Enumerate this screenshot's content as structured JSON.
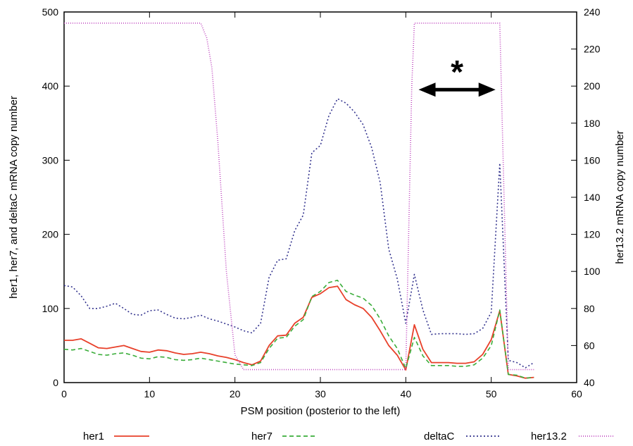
{
  "chart_data": {
    "type": "line",
    "xlabel": "PSM position (posterior to the left)",
    "ylabel": "her1, her7, and deltaC mRNA copy number",
    "y2label": "her13.2 mRNA copy number",
    "xlim": [
      0,
      60
    ],
    "ylim": [
      0,
      500
    ],
    "y2lim": [
      40,
      240
    ],
    "xticks": [
      0,
      10,
      20,
      30,
      40,
      50,
      60
    ],
    "yticks": [
      0,
      100,
      200,
      300,
      400,
      500
    ],
    "y2ticks": [
      40,
      60,
      80,
      100,
      120,
      140,
      160,
      180,
      200,
      220,
      240
    ],
    "grid": false,
    "legend_position": "bottom",
    "annotation": {
      "text": "*",
      "arrow_from": 41.5,
      "arrow_to": 50.5,
      "arrow_y": 400
    },
    "series": [
      {
        "name": "her1",
        "axis": "left",
        "color": "#e8402a",
        "dash": "",
        "x": [
          0,
          1,
          2,
          3,
          4,
          5,
          6,
          7,
          8,
          9,
          10,
          11,
          12,
          13,
          14,
          15,
          16,
          17,
          18,
          19,
          20,
          21,
          22,
          23,
          24,
          25,
          26,
          27,
          28,
          29,
          30,
          31,
          32,
          33,
          34,
          35,
          36,
          37,
          38,
          39,
          40,
          41,
          42,
          43,
          44,
          45,
          46,
          47,
          48,
          49,
          50,
          51,
          52,
          53,
          54,
          55
        ],
        "y": [
          57,
          57,
          59,
          53,
          47,
          46,
          48,
          50,
          46,
          42,
          41,
          44,
          43,
          40,
          38,
          39,
          41,
          39,
          36,
          34,
          31,
          27,
          24,
          29,
          50,
          63,
          64,
          80,
          88,
          115,
          120,
          128,
          130,
          112,
          105,
          100,
          88,
          70,
          50,
          37,
          17,
          78,
          45,
          27,
          27,
          27,
          26,
          26,
          28,
          38,
          58,
          97,
          11,
          9,
          6,
          7
        ]
      },
      {
        "name": "her7",
        "axis": "left",
        "color": "#3aad3a",
        "dash": "6 4",
        "x": [
          0,
          1,
          2,
          3,
          4,
          5,
          6,
          7,
          8,
          9,
          10,
          11,
          12,
          13,
          14,
          15,
          16,
          17,
          18,
          19,
          20,
          21,
          22,
          23,
          24,
          25,
          26,
          27,
          28,
          29,
          30,
          31,
          32,
          33,
          34,
          35,
          36,
          37,
          38,
          39,
          40,
          41,
          42,
          43,
          44,
          45,
          46,
          47,
          48,
          49,
          50,
          51,
          52,
          53,
          54,
          55
        ],
        "y": [
          45,
          44,
          46,
          42,
          38,
          37,
          39,
          40,
          37,
          33,
          32,
          35,
          34,
          31,
          30,
          31,
          33,
          31,
          29,
          27,
          25,
          24,
          23,
          27,
          46,
          60,
          61,
          76,
          85,
          116,
          123,
          135,
          138,
          123,
          118,
          114,
          104,
          86,
          63,
          46,
          19,
          61,
          36,
          23,
          23,
          23,
          22,
          22,
          24,
          33,
          50,
          98,
          11,
          10,
          6,
          7
        ]
      },
      {
        "name": "deltaC",
        "axis": "left",
        "color": "#35358f",
        "dash": "2 3",
        "x": [
          0,
          1,
          2,
          3,
          4,
          5,
          6,
          7,
          8,
          9,
          10,
          11,
          12,
          13,
          14,
          15,
          16,
          17,
          18,
          19,
          20,
          21,
          22,
          23,
          24,
          25,
          26,
          27,
          28,
          29,
          30,
          31,
          32,
          33,
          34,
          35,
          36,
          37,
          38,
          39,
          40,
          41,
          42,
          43,
          44,
          45,
          46,
          47,
          48,
          49,
          50,
          51,
          52,
          53,
          54,
          55
        ],
        "y": [
          131,
          129,
          117,
          100,
          100,
          103,
          107,
          100,
          92,
          91,
          97,
          98,
          92,
          87,
          86,
          88,
          91,
          86,
          83,
          79,
          75,
          70,
          67,
          80,
          142,
          165,
          167,
          205,
          226,
          310,
          320,
          360,
          383,
          377,
          365,
          348,
          317,
          270,
          180,
          140,
          80,
          146,
          98,
          65,
          66,
          66,
          66,
          65,
          66,
          73,
          95,
          296,
          30,
          27,
          20,
          27
        ]
      },
      {
        "name": "her13.2",
        "axis": "right",
        "color": "#c04ac0",
        "dash": "1 2",
        "x": [
          0,
          16,
          16.7,
          17.3,
          18,
          19,
          20,
          21,
          40,
          40.7,
          41,
          51,
          52,
          55
        ],
        "y": [
          234,
          234,
          226,
          210,
          170,
          100,
          55,
          47,
          47,
          200,
          234,
          234,
          47,
          47
        ]
      }
    ]
  }
}
